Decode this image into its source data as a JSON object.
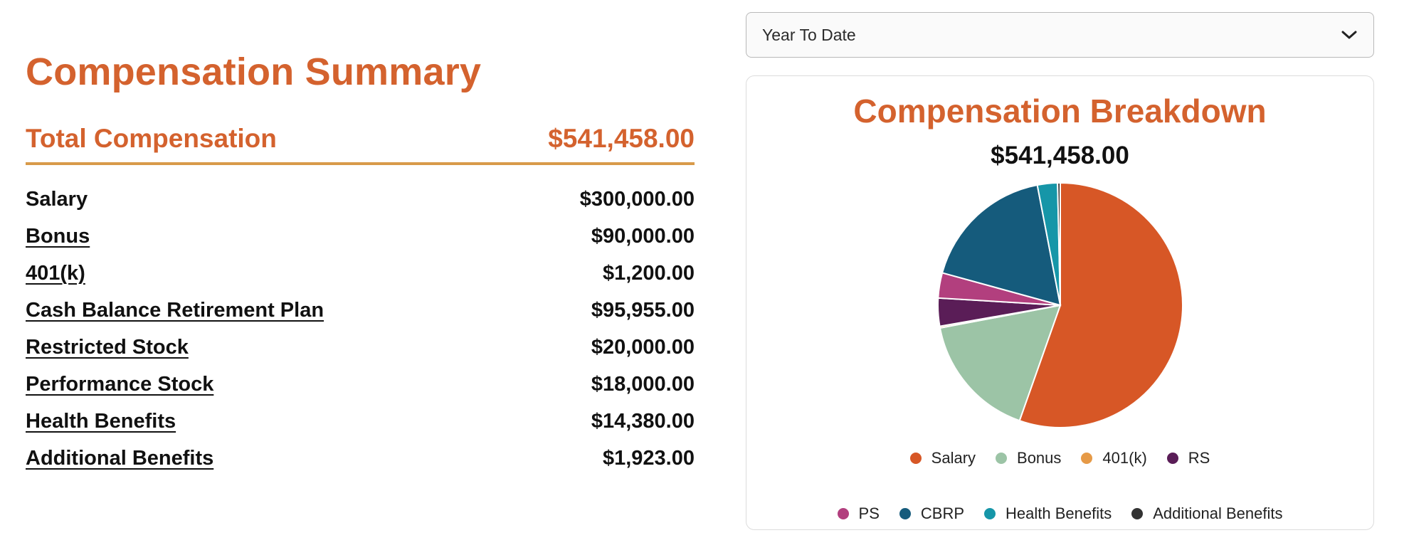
{
  "summary": {
    "title": "Compensation Summary",
    "total_label": "Total Compensation",
    "total_value": "$541,458.00",
    "items": [
      {
        "label": "Salary",
        "value": "$300,000.00",
        "link": false
      },
      {
        "label": "Bonus",
        "value": "$90,000.00",
        "link": true
      },
      {
        "label": "401(k)",
        "value": "$1,200.00",
        "link": true
      },
      {
        "label": "Cash Balance Retirement Plan",
        "value": "$95,955.00",
        "link": true
      },
      {
        "label": "Restricted Stock",
        "value": "$20,000.00",
        "link": true
      },
      {
        "label": "Performance Stock",
        "value": "$18,000.00",
        "link": true
      },
      {
        "label": "Health Benefits",
        "value": "$14,380.00",
        "link": true
      },
      {
        "label": "Additional Benefits",
        "value": "$1,923.00",
        "link": true
      }
    ]
  },
  "period_select": {
    "selected": "Year To Date"
  },
  "colors": {
    "accent": "#d4622e",
    "divider": "#d89a4a"
  },
  "chart_data": {
    "type": "pie",
    "title": "Compensation Breakdown",
    "total": "$541,458.00",
    "legend_position": "bottom",
    "slices": [
      {
        "name": "Salary",
        "value": 300000,
        "color": "#d75726"
      },
      {
        "name": "Bonus",
        "value": 90000,
        "color": "#9cc4a6"
      },
      {
        "name": "401(k)",
        "value": 1200,
        "color": "#e69a47"
      },
      {
        "name": "RS",
        "value": 20000,
        "color": "#5a1d57"
      },
      {
        "name": "PS",
        "value": 18000,
        "color": "#b23f7e"
      },
      {
        "name": "CBRP",
        "value": 95955,
        "color": "#155b7c"
      },
      {
        "name": "Health Benefits",
        "value": 14380,
        "color": "#1696a8"
      },
      {
        "name": "Additional Benefits",
        "value": 1923,
        "color": "#333333"
      }
    ]
  }
}
